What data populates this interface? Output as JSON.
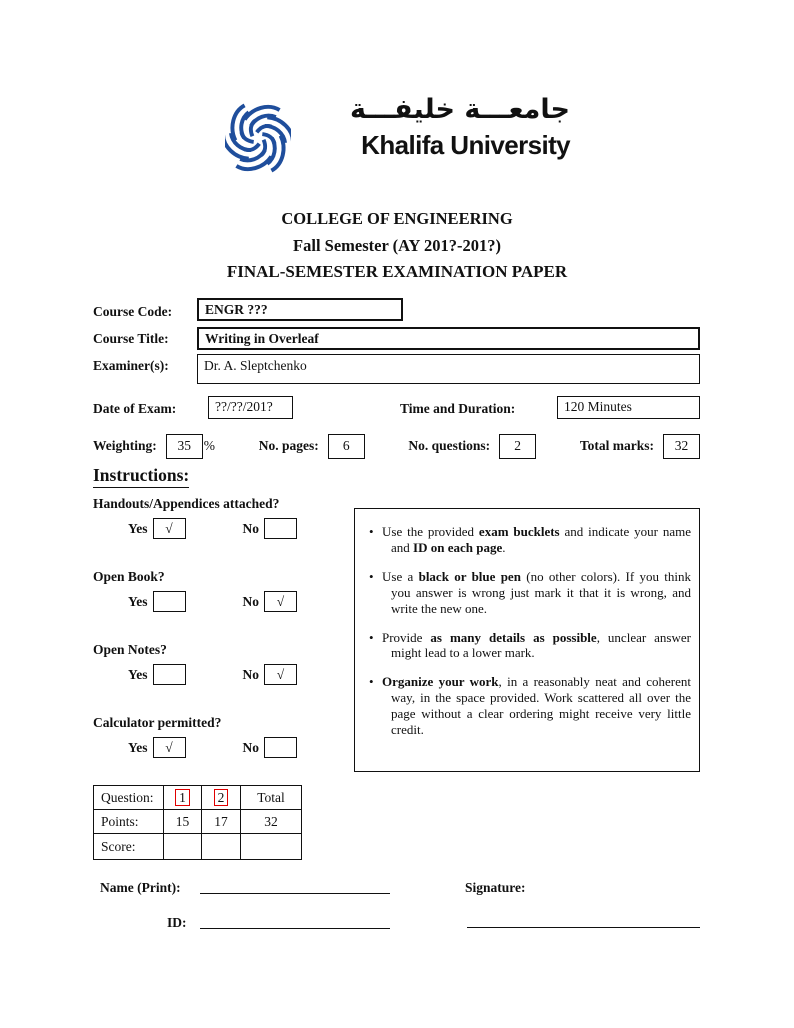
{
  "colors": {
    "brand_blue": "#1f4e9c",
    "link_red": "#e00000"
  },
  "logo": {
    "arabic": "جامعـــة خليفـــة",
    "english": "Khalifa University"
  },
  "header": {
    "line1": "COLLEGE OF ENGINEERING",
    "line2": "Fall Semester (AY 201?-201?)",
    "line3": "FINAL-SEMESTER EXAMINATION PAPER"
  },
  "course_fields": {
    "code_label": "Course Code:",
    "code_value": "ENGR ???",
    "title_label": "Course Title:",
    "title_value": "Writing in Overleaf",
    "examiner_label": "Examiner(s):",
    "examiner_value": "Dr. A. Sleptchenko"
  },
  "exam_info": {
    "date_label": "Date of Exam:",
    "date_value": "??/??/201?",
    "time_label": "Time and Duration:",
    "time_value": "120 Minutes",
    "weighting_label": "Weighting:",
    "weighting_value": "35",
    "weighting_unit": "%",
    "pages_label": "No. pages:",
    "pages_value": "6",
    "questions_label": "No. questions:",
    "questions_value": "2",
    "marks_label": "Total marks:",
    "marks_value": "32"
  },
  "instructions": {
    "heading": "Instructions:",
    "yes_label": "Yes",
    "no_label": "No",
    "check_char": "√",
    "questions": [
      {
        "label": "Handouts/Appendices attached?",
        "yes": "√",
        "no": ""
      },
      {
        "label": "Open Book?",
        "yes": "",
        "no": "√"
      },
      {
        "label": "Open Notes?",
        "yes": "",
        "no": "√"
      },
      {
        "label": "Calculator permitted?",
        "yes": "√",
        "no": ""
      }
    ]
  },
  "notes": {
    "bullets": [
      [
        {
          "t": "Use the provided ",
          "b": 0
        },
        {
          "t": "exam bucklets",
          "b": 1
        },
        {
          "t": " and indicate your name and ",
          "b": 0
        },
        {
          "t": "ID on each page",
          "b": 1
        },
        {
          "t": ".",
          "b": 0
        }
      ],
      [
        {
          "t": "Use a ",
          "b": 0
        },
        {
          "t": "black or blue pen",
          "b": 1
        },
        {
          "t": " (no other colors). If you think you answer is wrong just mark it that it is wrong, and write the new one.",
          "b": 0
        }
      ],
      [
        {
          "t": "Provide ",
          "b": 0
        },
        {
          "t": "as many details as possible",
          "b": 1
        },
        {
          "t": ", unclear answer might lead to a lower mark.",
          "b": 0
        }
      ],
      [
        {
          "t": "Organize your work",
          "b": 1
        },
        {
          "t": ", in a reasonably neat and coherent way, in the space provided.  Work scattered all over the page without a clear ordering might receive very little credit.",
          "b": 0
        }
      ]
    ]
  },
  "grade_table": {
    "rows": [
      {
        "header": "Question:",
        "cells": [
          {
            "text": "1",
            "link": true
          },
          {
            "text": "2",
            "link": true
          },
          {
            "text": "Total",
            "link": false
          }
        ]
      },
      {
        "header": "Points:",
        "cells": [
          {
            "text": "15",
            "link": false
          },
          {
            "text": "17",
            "link": false
          },
          {
            "text": "32",
            "link": false
          }
        ]
      },
      {
        "header": "Score:",
        "cells": [
          {
            "text": "",
            "link": false
          },
          {
            "text": "",
            "link": false
          },
          {
            "text": "",
            "link": false
          }
        ]
      }
    ]
  },
  "footer": {
    "name_label": "Name (Print):",
    "signature_label": "Signature:",
    "id_label": "ID:"
  }
}
